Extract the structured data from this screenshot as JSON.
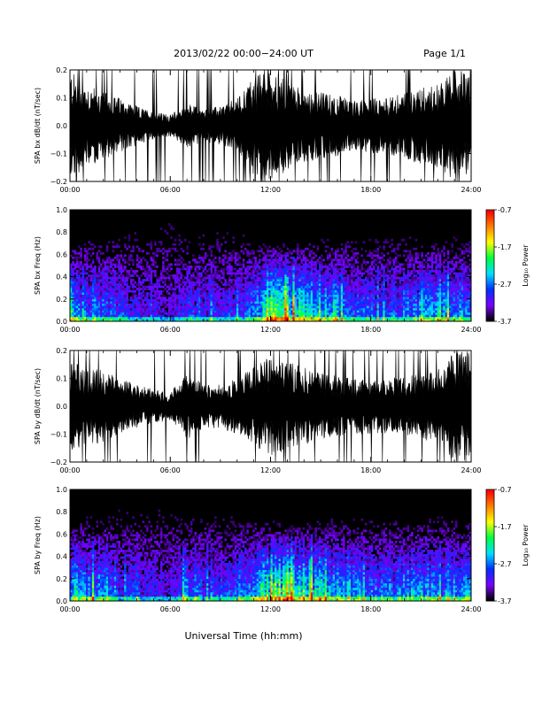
{
  "header": {
    "date_range": "2013/02/22  00:00−24:00 UT",
    "page": "Page 1/1"
  },
  "x_axis_label": "Universal Time (hh:mm)",
  "colorbar": {
    "label": "Log₁₀ Power",
    "ticks": [
      "-0.7",
      "-1.7",
      "-2.7",
      "-3.7"
    ],
    "range": [
      -3.7,
      -0.7
    ],
    "colors": [
      "#000000",
      "#7a00ff",
      "#0030ff",
      "#00e0ff",
      "#00ff40",
      "#ffff00",
      "#ff8000",
      "#ff0000"
    ]
  },
  "chart_data": [
    {
      "type": "area",
      "ylabel": "SPA bx dB/dt (nT/sec)",
      "xlim": [
        0,
        24
      ],
      "ylim": [
        -0.2,
        0.2
      ],
      "x_ticks": [
        "00:00",
        "06:00",
        "12:00",
        "18:00",
        "24:00"
      ],
      "y_ticks": [
        "0.2",
        "0.1",
        "0.0",
        "−0.1",
        "−0.2"
      ],
      "x": [
        0,
        1,
        2,
        3,
        4,
        5,
        6,
        7,
        8,
        9,
        10,
        11,
        12,
        13,
        14,
        15,
        16,
        17,
        18,
        19,
        20,
        21,
        22,
        23,
        24
      ],
      "amplitude": [
        0.2,
        0.15,
        0.12,
        0.1,
        0.07,
        0.05,
        0.04,
        0.08,
        0.06,
        0.07,
        0.1,
        0.18,
        0.2,
        0.16,
        0.13,
        0.12,
        0.11,
        0.09,
        0.1,
        0.1,
        0.12,
        0.14,
        0.15,
        0.2,
        0.2
      ]
    },
    {
      "type": "heatmap",
      "ylabel": "SPA bx Freq (Hz)",
      "xlim": [
        0,
        24
      ],
      "ylim": [
        0,
        1.0
      ],
      "x_ticks": [
        "00:00",
        "06:00",
        "12:00",
        "18:00",
        "24:00"
      ],
      "y_ticks": [
        "1.0",
        "0.8",
        "0.6",
        "0.4",
        "0.2",
        "0.0"
      ],
      "x": [
        0,
        1,
        2,
        3,
        4,
        5,
        6,
        7,
        8,
        9,
        10,
        11,
        12,
        13,
        14,
        15,
        16,
        17,
        18,
        19,
        20,
        21,
        22,
        23,
        24
      ],
      "activity": [
        0.7,
        0.5,
        0.45,
        0.35,
        0.3,
        0.25,
        0.2,
        0.45,
        0.35,
        0.3,
        0.35,
        0.55,
        0.85,
        0.8,
        0.7,
        0.65,
        0.6,
        0.5,
        0.45,
        0.4,
        0.45,
        0.5,
        0.55,
        0.6,
        0.5
      ]
    },
    {
      "type": "area",
      "ylabel": "SPA by dB/dt (nT/sec)",
      "xlim": [
        0,
        24
      ],
      "ylim": [
        -0.2,
        0.2
      ],
      "x_ticks": [
        "00:00",
        "06:00",
        "12:00",
        "18:00",
        "24:00"
      ],
      "y_ticks": [
        "0.2",
        "0.1",
        "0.0",
        "−0.1",
        "−0.2"
      ],
      "x": [
        0,
        1,
        2,
        3,
        4,
        5,
        6,
        7,
        8,
        9,
        10,
        11,
        12,
        13,
        14,
        15,
        16,
        17,
        18,
        19,
        20,
        21,
        22,
        23,
        24
      ],
      "amplitude": [
        0.16,
        0.14,
        0.13,
        0.1,
        0.08,
        0.06,
        0.05,
        0.12,
        0.08,
        0.08,
        0.1,
        0.14,
        0.18,
        0.16,
        0.14,
        0.12,
        0.11,
        0.1,
        0.1,
        0.1,
        0.11,
        0.12,
        0.13,
        0.2,
        0.2
      ]
    },
    {
      "type": "heatmap",
      "ylabel": "SPA by Freq (Hz)",
      "xlim": [
        0,
        24
      ],
      "ylim": [
        0,
        1.0
      ],
      "x_ticks": [
        "00:00",
        "06:00",
        "12:00",
        "18:00",
        "24:00"
      ],
      "y_ticks": [
        "1.0",
        "0.8",
        "0.6",
        "0.4",
        "0.2",
        "0.0"
      ],
      "x": [
        0,
        1,
        2,
        3,
        4,
        5,
        6,
        7,
        8,
        9,
        10,
        11,
        12,
        13,
        14,
        15,
        16,
        17,
        18,
        19,
        20,
        21,
        22,
        23,
        24
      ],
      "activity": [
        0.65,
        0.55,
        0.5,
        0.4,
        0.35,
        0.3,
        0.25,
        0.5,
        0.35,
        0.35,
        0.4,
        0.55,
        0.85,
        0.85,
        0.75,
        0.7,
        0.6,
        0.55,
        0.5,
        0.45,
        0.5,
        0.55,
        0.55,
        0.6,
        0.5
      ]
    }
  ]
}
